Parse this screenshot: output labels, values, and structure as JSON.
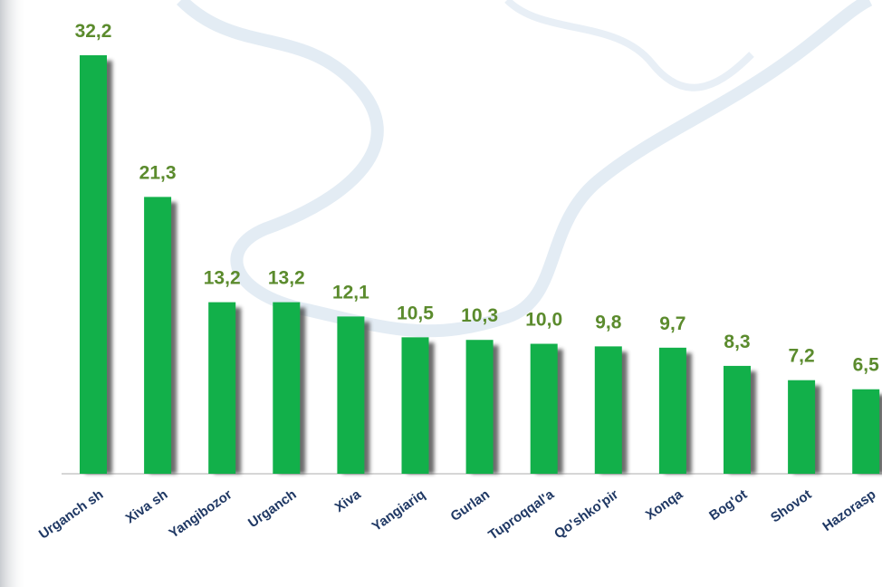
{
  "chart_data": {
    "type": "bar",
    "categories": [
      "Urganch sh",
      "Xiva sh",
      "Yangibozor",
      "Urganch",
      "Xiva",
      "Yangiariq",
      "Gurlan",
      "Tuproqqal'a",
      "Qo'shko'pir",
      "Xonqa",
      "Bog'ot",
      "Shovot",
      "Hazorasp"
    ],
    "values": [
      32.2,
      21.3,
      13.2,
      13.2,
      12.1,
      10.5,
      10.3,
      10.0,
      9.8,
      9.7,
      8.3,
      7.2,
      6.5
    ],
    "value_labels": [
      "32,2",
      "21,3",
      "13,2",
      "13,2",
      "12,1",
      "10,5",
      "10,3",
      "10,0",
      "9,8",
      "9,7",
      "8,3",
      "7,2",
      "6,5"
    ],
    "color": "#12b04a"
  }
}
